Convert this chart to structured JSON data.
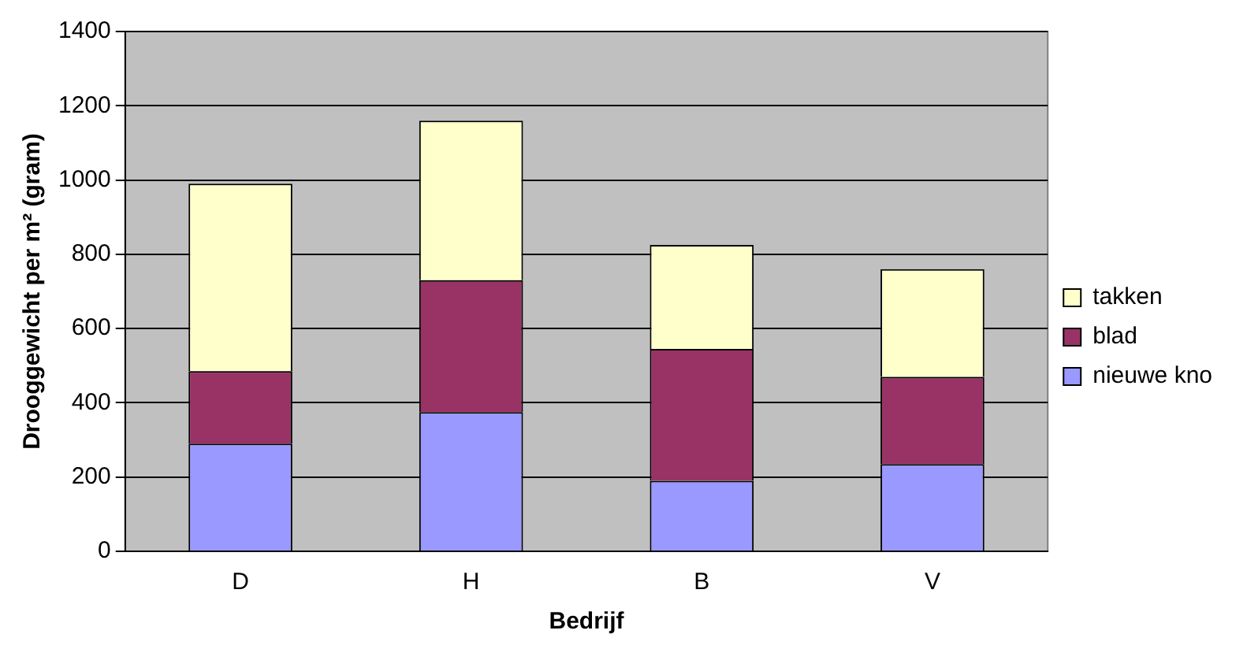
{
  "chart_data": {
    "type": "bar",
    "stacked": true,
    "xlabel": "Bedrijf",
    "ylabel": "Drooggewicht per m² (gram)",
    "categories": [
      "D",
      "H",
      "B",
      "V"
    ],
    "series": [
      {
        "name": "nieuwe kno",
        "color": "#9999ff",
        "values": [
          290,
          375,
          190,
          235
        ]
      },
      {
        "name": "blad",
        "color": "#993366",
        "values": [
          195,
          355,
          355,
          235
        ]
      },
      {
        "name": "takken",
        "color": "#ffffcc",
        "values": [
          505,
          430,
          280,
          290
        ]
      }
    ],
    "ylim": [
      0,
      1400
    ],
    "yticks": [
      0,
      200,
      400,
      600,
      800,
      1000,
      1200,
      1400
    ],
    "grid": "y",
    "legend": "right"
  }
}
